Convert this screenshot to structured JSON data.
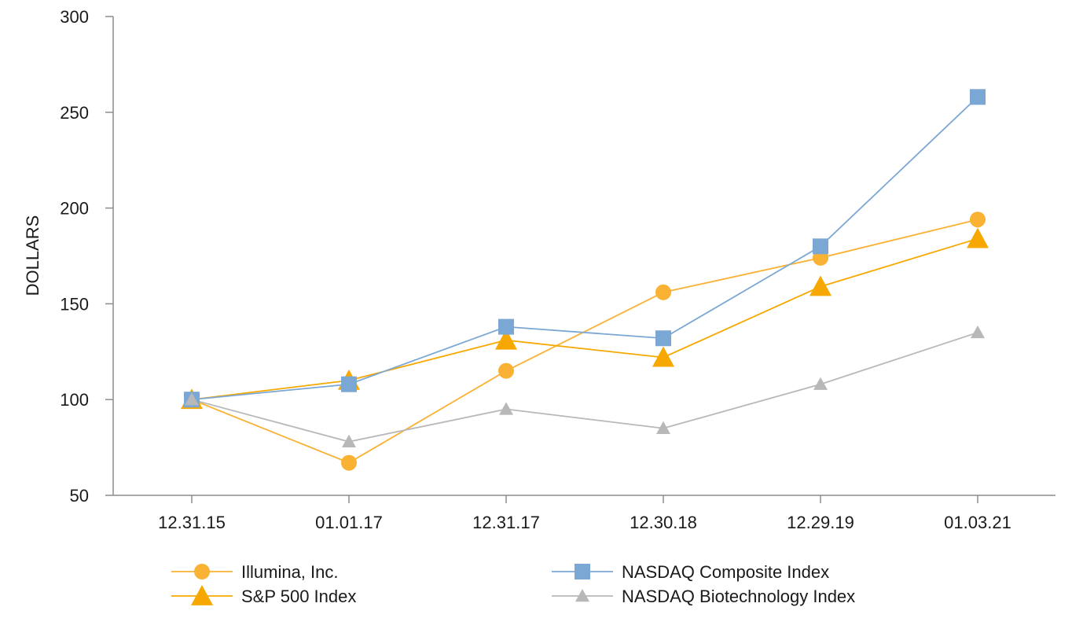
{
  "chart_data": {
    "type": "line",
    "title": "",
    "xlabel": "",
    "ylabel": "DOLLARS",
    "ylim": [
      50,
      300
    ],
    "yticks": [
      50,
      100,
      150,
      200,
      250,
      300
    ],
    "categories": [
      "12.31.15",
      "01.01.17",
      "12.31.17",
      "12.30.18",
      "12.29.19",
      "01.03.21"
    ],
    "grid": false,
    "legend_position": "bottom",
    "series": [
      {
        "name": "Illumina, Inc.",
        "marker": "circle",
        "color": "#F9B233",
        "values": [
          100,
          67,
          115,
          156,
          174,
          194
        ]
      },
      {
        "name": "S&P 500 Index",
        "marker": "triangle",
        "color": "#F6A800",
        "values": [
          100,
          110,
          131,
          122,
          159,
          184
        ]
      },
      {
        "name": "NASDAQ Composite Index",
        "marker": "square",
        "color": "#7BA7D4",
        "values": [
          100,
          108,
          138,
          132,
          180,
          258
        ]
      },
      {
        "name": "NASDAQ Biotechnology Index",
        "marker": "small-triangle",
        "color": "#B8B8B8",
        "values": [
          100,
          78,
          95,
          85,
          108,
          135
        ]
      }
    ]
  }
}
